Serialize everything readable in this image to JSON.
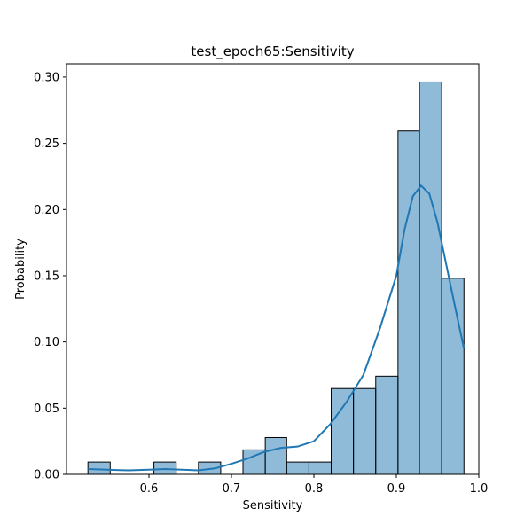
{
  "chart_data": {
    "type": "bar",
    "title": "test_epoch65:Sensitivity",
    "xlabel": "Sensitivity",
    "ylabel": "Probability",
    "xlim": [
      0.5,
      1.0
    ],
    "ylim": [
      0.0,
      0.31
    ],
    "x_ticks": [
      0.6,
      0.7,
      0.8,
      0.9,
      1.0
    ],
    "x_tick_labels": [
      "0.6",
      "0.7",
      "0.8",
      "0.9",
      "1.0"
    ],
    "y_ticks": [
      0.0,
      0.05,
      0.1,
      0.15,
      0.2,
      0.25,
      0.3
    ],
    "y_tick_labels": [
      "0.00",
      "0.05",
      "0.10",
      "0.15",
      "0.20",
      "0.25",
      "0.30"
    ],
    "grid": false,
    "bar_color": "#1f77b4",
    "bar_fill_opacity": 0.5,
    "bar_edge_color": "#000000",
    "bins": [
      {
        "x0": 0.526,
        "x1": 0.553,
        "value": 0.0093
      },
      {
        "x0": 0.553,
        "x1": 0.58,
        "value": 0.0
      },
      {
        "x0": 0.58,
        "x1": 0.606,
        "value": 0.0
      },
      {
        "x0": 0.606,
        "x1": 0.633,
        "value": 0.0093
      },
      {
        "x0": 0.633,
        "x1": 0.66,
        "value": 0.0
      },
      {
        "x0": 0.66,
        "x1": 0.687,
        "value": 0.0093
      },
      {
        "x0": 0.687,
        "x1": 0.714,
        "value": 0.0
      },
      {
        "x0": 0.714,
        "x1": 0.741,
        "value": 0.0185
      },
      {
        "x0": 0.741,
        "x1": 0.767,
        "value": 0.0278
      },
      {
        "x0": 0.767,
        "x1": 0.794,
        "value": 0.0093
      },
      {
        "x0": 0.794,
        "x1": 0.821,
        "value": 0.0093
      },
      {
        "x0": 0.821,
        "x1": 0.848,
        "value": 0.0648
      },
      {
        "x0": 0.848,
        "x1": 0.875,
        "value": 0.0648
      },
      {
        "x0": 0.875,
        "x1": 0.902,
        "value": 0.0741
      },
      {
        "x0": 0.902,
        "x1": 0.928,
        "value": 0.2593
      },
      {
        "x0": 0.928,
        "x1": 0.955,
        "value": 0.2963
      },
      {
        "x0": 0.955,
        "x1": 0.982,
        "value": 0.1481
      }
    ],
    "kde": {
      "color": "#1f77b4",
      "x": [
        0.526,
        0.55,
        0.575,
        0.6,
        0.62,
        0.64,
        0.66,
        0.68,
        0.7,
        0.72,
        0.74,
        0.76,
        0.78,
        0.8,
        0.82,
        0.84,
        0.86,
        0.88,
        0.9,
        0.91,
        0.92,
        0.93,
        0.94,
        0.95,
        0.96,
        0.97,
        0.982
      ],
      "y": [
        0.004,
        0.0035,
        0.003,
        0.0035,
        0.004,
        0.0035,
        0.003,
        0.0045,
        0.008,
        0.012,
        0.017,
        0.02,
        0.021,
        0.025,
        0.038,
        0.055,
        0.075,
        0.11,
        0.15,
        0.185,
        0.21,
        0.218,
        0.212,
        0.19,
        0.16,
        0.13,
        0.095
      ]
    }
  }
}
